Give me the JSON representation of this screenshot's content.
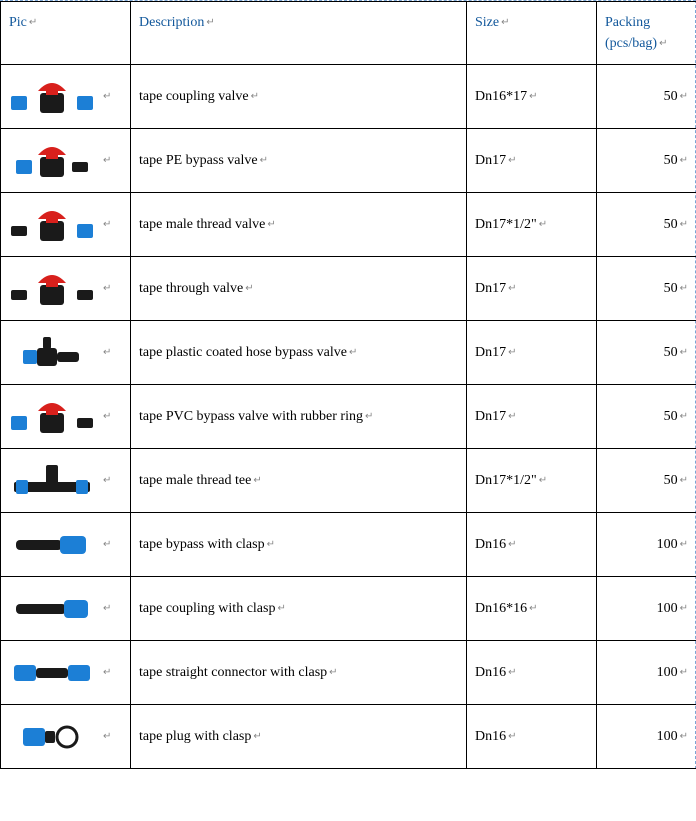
{
  "headers": {
    "pic": "Pic",
    "description": "Description",
    "size": "Size",
    "packing_line1": "Packing",
    "packing_line2": "(pcs/bag)"
  },
  "colors": {
    "header_text": "#11579b",
    "border": "#000000",
    "guide": "#7aa6d6",
    "body_black": "#1a1a1a",
    "handle_red": "#d8201c",
    "ring_blue": "#1c7fd6",
    "clasp_blue": "#1c7fd6"
  },
  "enter_glyph": "↵",
  "rows": [
    {
      "desc": "tape coupling valve",
      "size": "Dn16*17",
      "pack": "50",
      "pic": "valve_red_blue"
    },
    {
      "desc": "tape PE bypass valve",
      "size": "Dn17",
      "pack": "50",
      "pic": "valve_red_blue_short"
    },
    {
      "desc": "tape male thread valve",
      "size": "Dn17*1/2\"",
      "pack": "50",
      "pic": "valve_red_black_blue"
    },
    {
      "desc": "tape through valve",
      "size": "Dn17",
      "pack": "50",
      "pic": "valve_red_black"
    },
    {
      "desc": "tape plastic coated hose bypass valve",
      "size": "Dn17",
      "pack": "50",
      "pic": "valve_small_blue_black"
    },
    {
      "desc": "tape PVC bypass valve with rubber ring",
      "size": "Dn17",
      "pack": "50",
      "pic": "valve_red_blue_ring"
    },
    {
      "desc": "tape male thread tee",
      "size": "Dn17*1/2\"",
      "pack": "50",
      "pic": "tee_black_blue"
    },
    {
      "desc": "tape bypass with clasp",
      "size": "Dn16",
      "pack": "100",
      "pic": "bypass_clasp"
    },
    {
      "desc": "tape coupling with clasp",
      "size": "Dn16*16",
      "pack": "100",
      "pic": "coupling_clasp"
    },
    {
      "desc": "tape straight connector with clasp",
      "size": "Dn16",
      "pack": "100",
      "pic": "straight_clasp"
    },
    {
      "desc": "tape plug with clasp",
      "size": "Dn16",
      "pack": "100",
      "pic": "plug_clasp"
    }
  ]
}
